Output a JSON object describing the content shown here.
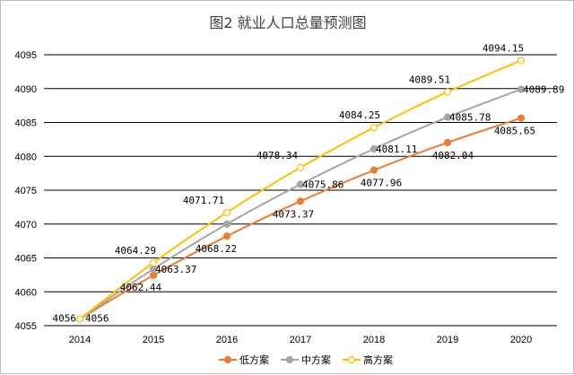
{
  "chart_data": {
    "type": "line",
    "title": "图2 就业人口总量预测图",
    "xlabel": "",
    "ylabel": "",
    "x": [
      "2014",
      "2015",
      "2016",
      "2017",
      "2018",
      "2019",
      "2020"
    ],
    "ylim": [
      4055,
      4095
    ],
    "yticks": [
      "4055",
      "4060",
      "4065",
      "4070",
      "4075",
      "4080",
      "4085",
      "4090",
      "4095"
    ],
    "grid": "horizontal",
    "legend_position": "bottom",
    "series": [
      {
        "name": "低方案",
        "color": "#ED7D31",
        "marker": "filled-circle",
        "values": [
          4056,
          4062.44,
          4068.22,
          4073.37,
          4077.96,
          4082.04,
          4085.65
        ],
        "labels": [
          "",
          "4062.44",
          "4068.22",
          "4073.37",
          "4077.96",
          "4082.04",
          "4085.65"
        ]
      },
      {
        "name": "中方案",
        "color": "#A5A5A5",
        "marker": "filled-circle",
        "values": [
          4056,
          4063.37,
          4070.0,
          4075.86,
          4081.11,
          4085.78,
          4089.89
        ],
        "labels": [
          "4056",
          "4063.37",
          "",
          "4075.86",
          "4081.11",
          "4085.78",
          "4089.89"
        ]
      },
      {
        "name": "高方案",
        "color": "#FFC000",
        "marker": "hollow-circle",
        "values": [
          4056,
          4064.29,
          4071.71,
          4078.34,
          4084.25,
          4089.51,
          4094.15
        ],
        "labels": [
          "4056",
          "4064.29",
          "4071.71",
          "4078.34",
          "4084.25",
          "4089.51",
          "4094.15"
        ]
      }
    ]
  }
}
